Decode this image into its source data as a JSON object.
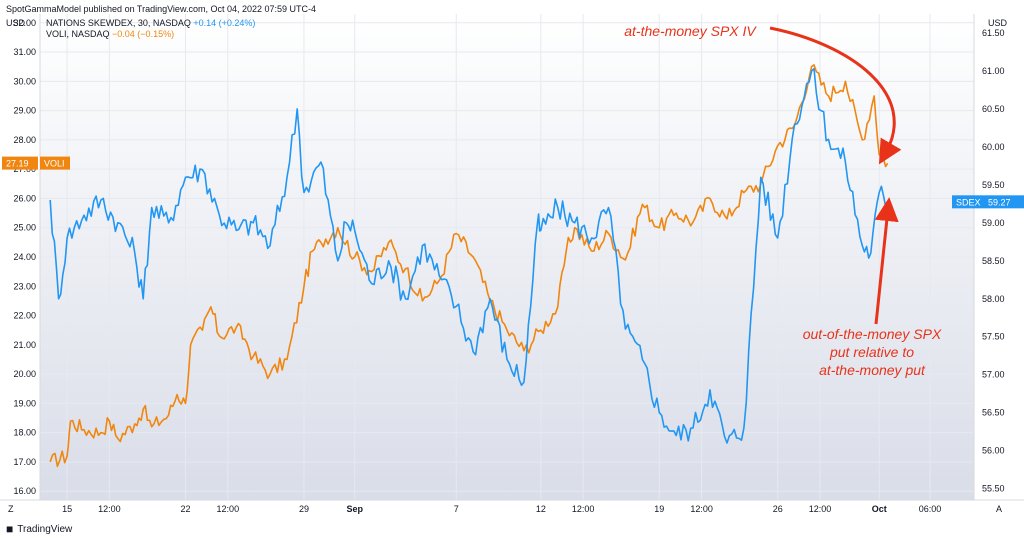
{
  "header": {
    "published": "SpotGammaModel published on TradingView.com, Oct 04, 2022 07:59 UTC-4"
  },
  "legend": [
    {
      "name": "NATIONS SKEWDEX, 30, NASDAQ",
      "change": "+0.14 (+0.24%)",
      "color": "#2196f3"
    },
    {
      "name": "VOLI, NASDAQ",
      "change": "−0.04 (−0.15%)",
      "color": "#f0860f"
    }
  ],
  "footer": {
    "brand": "TradingView"
  },
  "corner": {
    "left": "Z",
    "right": "A"
  },
  "chart_data": {
    "type": "line",
    "left_axis": {
      "unit": "USD",
      "range": [
        15.7,
        32.3
      ],
      "ticks": [
        "16.00",
        "17.00",
        "18.00",
        "19.00",
        "20.00",
        "21.00",
        "22.00",
        "23.00",
        "24.00",
        "25.00",
        "26.00",
        "27.00",
        "28.00",
        "29.00",
        "30.00",
        "31.00",
        "32.00"
      ]
    },
    "right_axis": {
      "unit": "USD",
      "range": [
        55.35,
        61.75
      ],
      "ticks": [
        "55.50",
        "56.00",
        "56.50",
        "57.00",
        "57.50",
        "58.00",
        "58.50",
        "59.00",
        "59.50",
        "60.00",
        "60.50",
        "61.00",
        "61.50"
      ]
    },
    "x_ticks": [
      {
        "label": "15",
        "d": 1.0
      },
      {
        "label": "12:00",
        "d": 3.5
      },
      {
        "label": "22",
        "d": 8.0
      },
      {
        "label": "12:00",
        "d": 10.5
      },
      {
        "label": "29",
        "d": 15.0
      },
      {
        "label": "Sep",
        "d": 18.0,
        "bold": true
      },
      {
        "label": "7",
        "d": 24.0
      },
      {
        "label": "12",
        "d": 29.0
      },
      {
        "label": "12:00",
        "d": 31.5
      },
      {
        "label": "19",
        "d": 36.0
      },
      {
        "label": "12:00",
        "d": 38.5
      },
      {
        "label": "26",
        "d": 43.0
      },
      {
        "label": "12:00",
        "d": 45.5
      },
      {
        "label": "Oct",
        "d": 49.0,
        "bold": true
      },
      {
        "label": "06:00",
        "d": 52.0
      }
    ],
    "x_range": [
      -0.6,
      54.6
    ],
    "series": [
      {
        "name": "VOLI",
        "color": "#f0860f",
        "axis": "left",
        "last_label": "27.19",
        "points": [
          [
            0,
            17.0
          ],
          [
            1,
            17.2
          ],
          [
            1.2,
            18.4
          ],
          [
            2,
            18.1
          ],
          [
            3,
            18.0
          ],
          [
            3.5,
            18.4
          ],
          [
            4,
            17.8
          ],
          [
            5,
            18.3
          ],
          [
            5.5,
            18.8
          ],
          [
            6,
            18.2
          ],
          [
            7,
            18.6
          ],
          [
            7.5,
            19.3
          ],
          [
            8,
            19.0
          ],
          [
            8.3,
            21.0
          ],
          [
            9,
            21.5
          ],
          [
            9.5,
            22.3
          ],
          [
            10,
            21.3
          ],
          [
            11,
            21.6
          ],
          [
            11.5,
            21.2
          ],
          [
            12,
            20.6
          ],
          [
            13,
            20.0
          ],
          [
            14,
            20.5
          ],
          [
            15,
            23.0
          ],
          [
            15.5,
            24.2
          ],
          [
            16,
            24.5
          ],
          [
            17,
            25.0
          ],
          [
            18,
            24.0
          ],
          [
            19,
            23.5
          ],
          [
            20,
            24.5
          ],
          [
            21,
            23.6
          ],
          [
            22,
            22.5
          ],
          [
            23,
            23.2
          ],
          [
            24,
            24.8
          ],
          [
            25,
            24.0
          ],
          [
            26,
            22.5
          ],
          [
            27,
            21.5
          ],
          [
            28,
            20.8
          ],
          [
            29,
            21.5
          ],
          [
            30,
            22.3
          ],
          [
            30.5,
            24.2
          ],
          [
            31,
            25.0
          ],
          [
            32,
            24.2
          ],
          [
            33,
            24.8
          ],
          [
            34,
            23.9
          ],
          [
            35,
            25.8
          ],
          [
            36,
            25.0
          ],
          [
            37,
            25.5
          ],
          [
            38,
            25.2
          ],
          [
            39,
            26.0
          ],
          [
            40,
            25.3
          ],
          [
            41,
            26.2
          ],
          [
            42,
            26.5
          ],
          [
            43,
            27.8
          ],
          [
            44,
            28.5
          ],
          [
            45,
            30.5
          ],
          [
            46,
            29.5
          ],
          [
            47,
            30.0
          ],
          [
            48,
            28.0
          ],
          [
            48.7,
            29.5
          ],
          [
            49,
            27.5
          ],
          [
            49.5,
            27.2
          ]
        ]
      },
      {
        "name": "SDEX",
        "color": "#2196f3",
        "axis": "right",
        "last_label": "59.27",
        "points": [
          [
            0,
            59.3
          ],
          [
            0.5,
            58.0
          ],
          [
            1,
            58.8
          ],
          [
            2,
            59.1
          ],
          [
            3,
            59.3
          ],
          [
            4,
            59.0
          ],
          [
            5,
            58.6
          ],
          [
            5.5,
            58.0
          ],
          [
            6,
            59.2
          ],
          [
            7,
            59.0
          ],
          [
            8,
            59.6
          ],
          [
            9,
            59.7
          ],
          [
            10,
            59.1
          ],
          [
            11,
            58.9
          ],
          [
            12,
            59.0
          ],
          [
            13,
            58.7
          ],
          [
            14,
            59.6
          ],
          [
            14.6,
            60.5
          ],
          [
            15,
            59.4
          ],
          [
            16,
            59.8
          ],
          [
            17,
            58.5
          ],
          [
            17.5,
            59.0
          ],
          [
            18,
            58.9
          ],
          [
            19,
            58.2
          ],
          [
            20,
            58.5
          ],
          [
            21,
            58.0
          ],
          [
            22,
            58.7
          ],
          [
            23,
            58.3
          ],
          [
            24,
            57.9
          ],
          [
            25,
            57.3
          ],
          [
            26,
            58.0
          ],
          [
            27,
            57.2
          ],
          [
            28,
            56.9
          ],
          [
            28.8,
            59.0
          ],
          [
            29,
            58.9
          ],
          [
            30,
            59.2
          ],
          [
            31,
            59.0
          ],
          [
            32,
            58.8
          ],
          [
            33,
            59.2
          ],
          [
            34,
            57.6
          ],
          [
            35,
            57.2
          ],
          [
            36,
            56.5
          ],
          [
            37,
            56.2
          ],
          [
            38,
            56.3
          ],
          [
            39,
            56.8
          ],
          [
            40,
            56.1
          ],
          [
            41,
            56.3
          ],
          [
            42,
            59.6
          ],
          [
            43,
            58.8
          ],
          [
            44,
            60.3
          ],
          [
            45,
            61.0
          ],
          [
            46,
            60.1
          ],
          [
            47,
            59.8
          ],
          [
            48,
            58.7
          ],
          [
            48.5,
            58.6
          ],
          [
            49,
            59.4
          ],
          [
            49.5,
            59.27
          ]
        ]
      }
    ],
    "annotations": [
      {
        "lines": [
          "at-the-money SPX IV"
        ]
      },
      {
        "lines": [
          "out-of-the-money SPX",
          "put relative to",
          "at-the-money put"
        ]
      }
    ]
  }
}
